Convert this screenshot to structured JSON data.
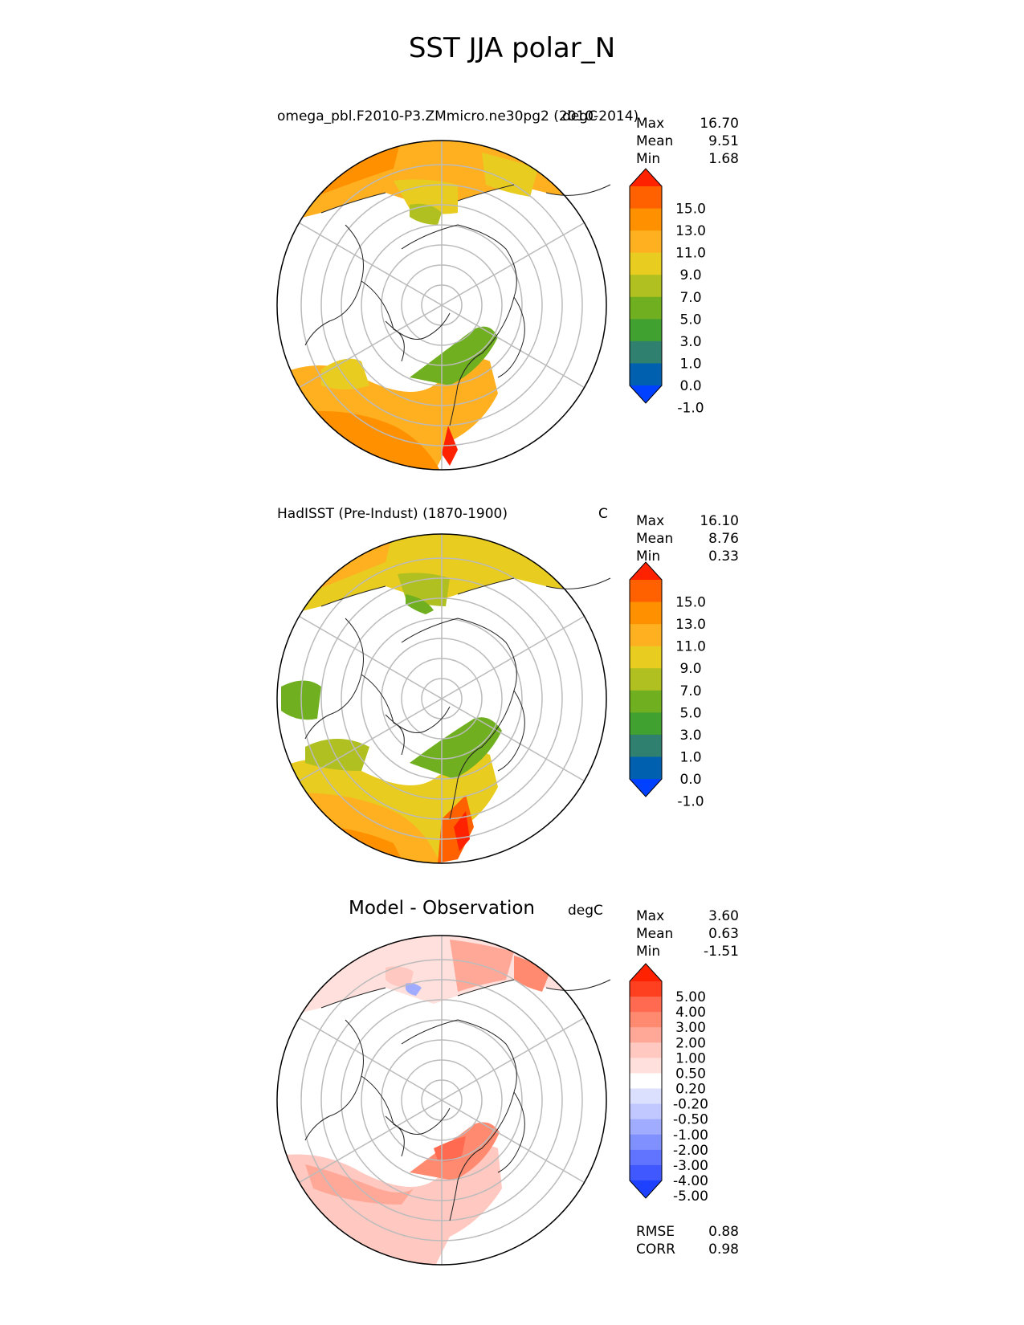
{
  "figure": {
    "title": "SST JJA polar_N"
  },
  "panels": [
    {
      "title": "omega_pbl.F2010-P3.ZMmicro.ne30pg2 (2010-2014)",
      "units": "degC",
      "stats": {
        "max_label": "Max",
        "max": "16.70",
        "mean_label": "Mean",
        "mean": "9.51",
        "min_label": "Min",
        "min": "1.68"
      },
      "colorbar": {
        "labels": [
          "15.0",
          "13.0",
          "11.0",
          "9.0",
          "7.0",
          "5.0",
          "3.0",
          "1.0",
          "0.0",
          "-1.0"
        ],
        "colors": [
          "#ff2200",
          "#ff6000",
          "#ff9000",
          "#ffb020",
          "#e8cc20",
          "#b0c020",
          "#70b020",
          "#40a030",
          "#308070",
          "#0060b0",
          "#0040ff"
        ]
      }
    },
    {
      "title": "HadISST (Pre-Indust) (1870-1900)",
      "units": "C",
      "stats": {
        "max_label": "Max",
        "max": "16.10",
        "mean_label": "Mean",
        "mean": "8.76",
        "min_label": "Min",
        "min": "0.33"
      },
      "colorbar": {
        "labels": [
          "15.0",
          "13.0",
          "11.0",
          "9.0",
          "7.0",
          "5.0",
          "3.0",
          "1.0",
          "0.0",
          "-1.0"
        ],
        "colors": [
          "#ff2200",
          "#ff6000",
          "#ff9000",
          "#ffb020",
          "#e8cc20",
          "#b0c020",
          "#70b020",
          "#40a030",
          "#308070",
          "#0060b0",
          "#0040ff"
        ]
      }
    },
    {
      "title": "Model - Observation",
      "units": "degC",
      "stats": {
        "max_label": "Max",
        "max": "3.60",
        "mean_label": "Mean",
        "mean": "0.63",
        "min_label": "Min",
        "min": "-1.51"
      },
      "colorbar": {
        "labels": [
          "5.00",
          "4.00",
          "3.00",
          "2.00",
          "1.00",
          "0.50",
          "0.20",
          "-0.20",
          "-0.50",
          "-1.00",
          "-2.00",
          "-3.00",
          "-4.00",
          "-5.00"
        ],
        "colors": [
          "#ff2200",
          "#ff4020",
          "#ff6a50",
          "#ff8a70",
          "#ffa898",
          "#ffc8c0",
          "#ffe0dc",
          "#ffffff",
          "#dce0ff",
          "#c0c8ff",
          "#a0acff",
          "#8090ff",
          "#6074ff",
          "#4058ff",
          "#1e40ff"
        ]
      },
      "footer": {
        "rmse_label": "RMSE",
        "rmse": "0.88",
        "corr_label": "CORR",
        "corr": "0.98"
      }
    }
  ]
}
